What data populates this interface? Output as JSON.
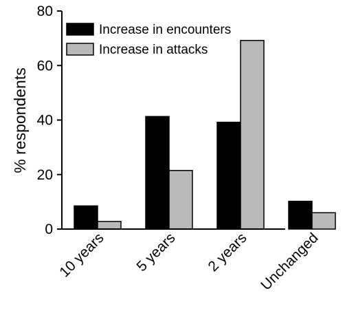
{
  "chart_data": {
    "type": "bar",
    "categories": [
      "10 years",
      "5 years",
      "2 years",
      "Unchanged"
    ],
    "series": [
      {
        "name": "Increase in encounters",
        "color": "#000000",
        "values": [
          8.5,
          41.3,
          39.2,
          10.2
        ]
      },
      {
        "name": "Increase in attacks",
        "color": "#b9b9b9",
        "values": [
          2.8,
          21.5,
          69.2,
          6.0
        ]
      }
    ],
    "xlabel": "",
    "ylabel": "% respondents",
    "ylim": [
      0,
      80
    ],
    "yticks": [
      0,
      20,
      40,
      60,
      80
    ],
    "grid": false,
    "legend": "top-left"
  }
}
